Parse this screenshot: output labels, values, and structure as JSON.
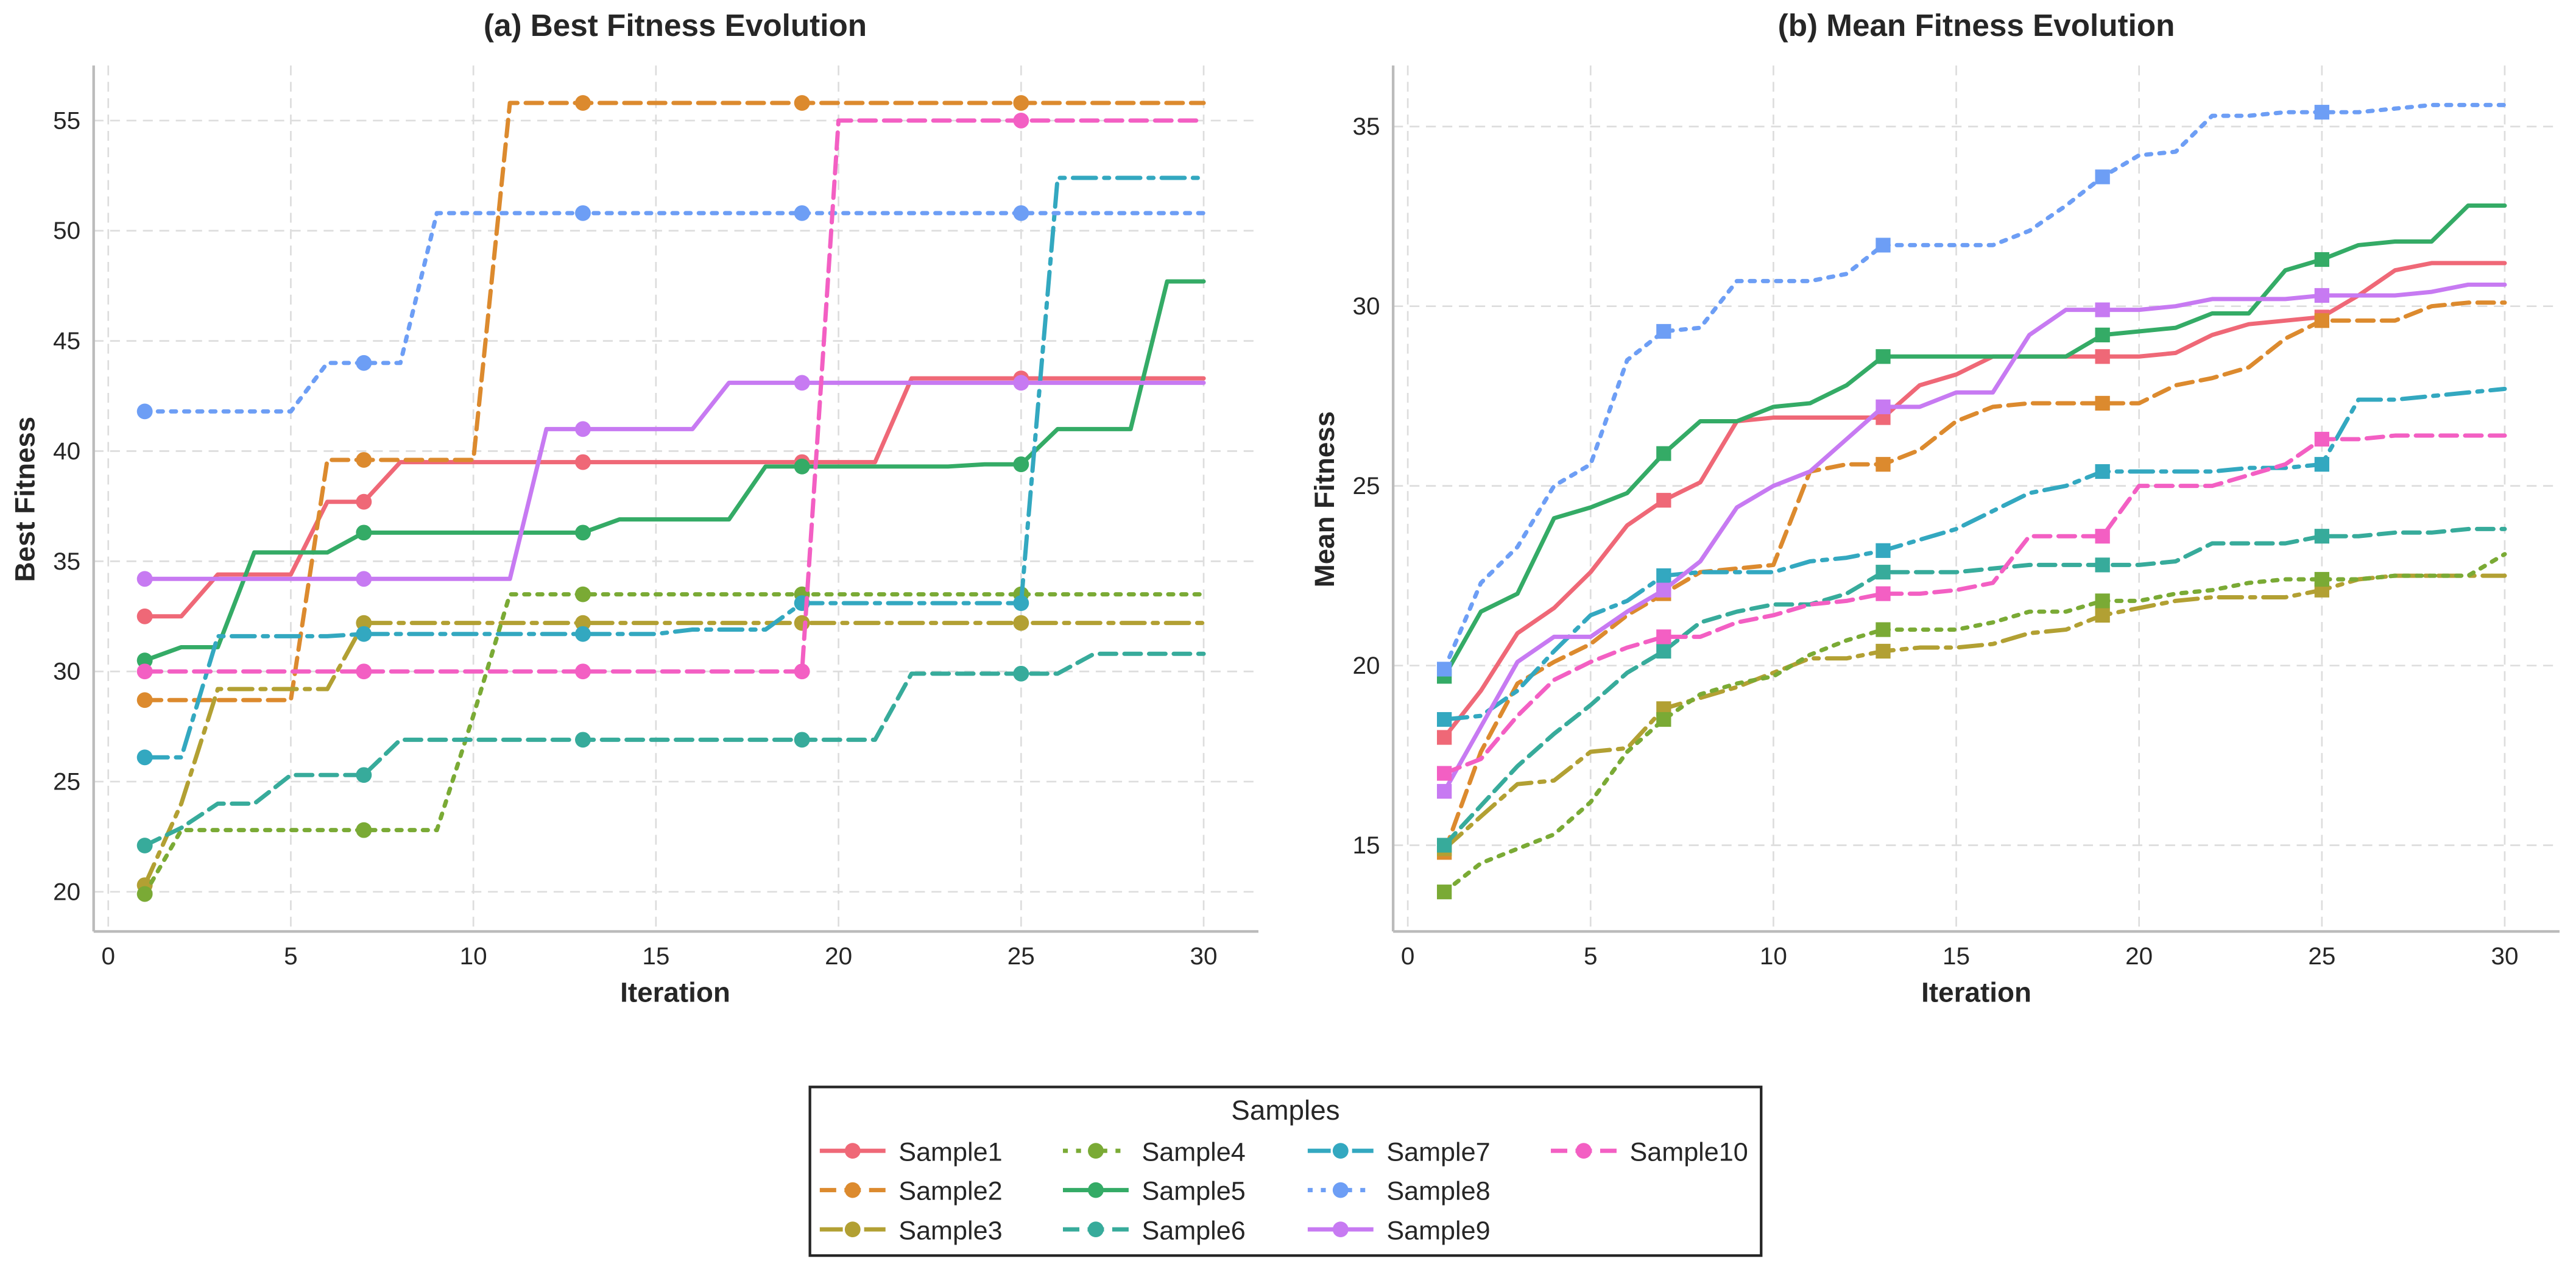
{
  "chart_data": [
    {
      "type": "line",
      "title": "(a) Best Fitness Evolution",
      "xlabel": "Iteration",
      "ylabel": "Best Fitness",
      "xlim": [
        -0.4,
        31.5
      ],
      "ylim": [
        18.2,
        57.5
      ],
      "xticks": [
        0,
        5,
        10,
        15,
        20,
        25,
        30
      ],
      "yticks": [
        20,
        25,
        30,
        35,
        40,
        45,
        50,
        55
      ],
      "grid": true,
      "marker": "circle",
      "marker_every": [
        1,
        7,
        13,
        19,
        25
      ],
      "x": [
        1,
        2,
        3,
        4,
        5,
        6,
        7,
        8,
        9,
        10,
        11,
        12,
        13,
        14,
        15,
        16,
        17,
        18,
        19,
        20,
        21,
        22,
        23,
        24,
        25,
        26,
        27,
        28,
        29,
        30
      ],
      "series": [
        {
          "name": "Sample1",
          "values": [
            32.5,
            32.5,
            34.4,
            34.4,
            34.4,
            37.7,
            37.7,
            39.5,
            39.5,
            39.5,
            39.5,
            39.5,
            39.5,
            39.5,
            39.5,
            39.5,
            39.5,
            39.5,
            39.5,
            39.5,
            39.5,
            43.3,
            43.3,
            43.3,
            43.3,
            43.3,
            43.3,
            43.3,
            43.3,
            43.3
          ]
        },
        {
          "name": "Sample2",
          "values": [
            28.7,
            28.7,
            28.7,
            28.7,
            28.7,
            39.6,
            39.6,
            39.6,
            39.6,
            39.6,
            55.8,
            55.8,
            55.8,
            55.8,
            55.8,
            55.8,
            55.8,
            55.8,
            55.8,
            55.8,
            55.8,
            55.8,
            55.8,
            55.8,
            55.8,
            55.8,
            55.8,
            55.8,
            55.8,
            55.8
          ]
        },
        {
          "name": "Sample3",
          "values": [
            20.3,
            24.0,
            29.2,
            29.2,
            29.2,
            29.2,
            32.2,
            32.2,
            32.2,
            32.2,
            32.2,
            32.2,
            32.2,
            32.2,
            32.2,
            32.2,
            32.2,
            32.2,
            32.2,
            32.2,
            32.2,
            32.2,
            32.2,
            32.2,
            32.2,
            32.2,
            32.2,
            32.2,
            32.2,
            32.2
          ]
        },
        {
          "name": "Sample4",
          "values": [
            19.9,
            22.8,
            22.8,
            22.8,
            22.8,
            22.8,
            22.8,
            22.8,
            22.8,
            28.0,
            33.5,
            33.5,
            33.5,
            33.5,
            33.5,
            33.5,
            33.5,
            33.5,
            33.5,
            33.5,
            33.5,
            33.5,
            33.5,
            33.5,
            33.5,
            33.5,
            33.5,
            33.5,
            33.5,
            33.5
          ]
        },
        {
          "name": "Sample5",
          "values": [
            30.5,
            31.1,
            31.1,
            35.4,
            35.4,
            35.4,
            36.3,
            36.3,
            36.3,
            36.3,
            36.3,
            36.3,
            36.3,
            36.9,
            36.9,
            36.9,
            36.9,
            39.3,
            39.3,
            39.3,
            39.3,
            39.3,
            39.3,
            39.4,
            39.4,
            41.0,
            41.0,
            41.0,
            47.7,
            47.7
          ]
        },
        {
          "name": "Sample6",
          "values": [
            22.1,
            22.9,
            24.0,
            24.0,
            25.3,
            25.3,
            25.3,
            26.9,
            26.9,
            26.9,
            26.9,
            26.9,
            26.9,
            26.9,
            26.9,
            26.9,
            26.9,
            26.9,
            26.9,
            26.9,
            26.9,
            29.9,
            29.9,
            29.9,
            29.9,
            29.9,
            30.8,
            30.8,
            30.8,
            30.8
          ]
        },
        {
          "name": "Sample7",
          "values": [
            26.1,
            26.1,
            31.6,
            31.6,
            31.6,
            31.6,
            31.7,
            31.7,
            31.7,
            31.7,
            31.7,
            31.7,
            31.7,
            31.7,
            31.7,
            31.9,
            31.9,
            31.9,
            33.1,
            33.1,
            33.1,
            33.1,
            33.1,
            33.1,
            33.1,
            52.4,
            52.4,
            52.4,
            52.4,
            52.4
          ]
        },
        {
          "name": "Sample8",
          "values": [
            41.8,
            41.8,
            41.8,
            41.8,
            41.8,
            44.0,
            44.0,
            44.0,
            50.8,
            50.8,
            50.8,
            50.8,
            50.8,
            50.8,
            50.8,
            50.8,
            50.8,
            50.8,
            50.8,
            50.8,
            50.8,
            50.8,
            50.8,
            50.8,
            50.8,
            50.8,
            50.8,
            50.8,
            50.8,
            50.8
          ]
        },
        {
          "name": "Sample9",
          "values": [
            34.2,
            34.2,
            34.2,
            34.2,
            34.2,
            34.2,
            34.2,
            34.2,
            34.2,
            34.2,
            34.2,
            41.0,
            41.0,
            41.0,
            41.0,
            41.0,
            43.1,
            43.1,
            43.1,
            43.1,
            43.1,
            43.1,
            43.1,
            43.1,
            43.1,
            43.1,
            43.1,
            43.1,
            43.1,
            43.1
          ]
        },
        {
          "name": "Sample10",
          "values": [
            30.0,
            30.0,
            30.0,
            30.0,
            30.0,
            30.0,
            30.0,
            30.0,
            30.0,
            30.0,
            30.0,
            30.0,
            30.0,
            30.0,
            30.0,
            30.0,
            30.0,
            30.0,
            30.0,
            55.0,
            55.0,
            55.0,
            55.0,
            55.0,
            55.0,
            55.0,
            55.0,
            55.0,
            55.0,
            55.0
          ]
        }
      ]
    },
    {
      "type": "line",
      "title": "(b) Mean Fitness Evolution",
      "xlabel": "Iteration",
      "ylabel": "Mean Fitness",
      "xlim": [
        -0.4,
        31.5
      ],
      "ylim": [
        12.6,
        36.7
      ],
      "xticks": [
        0,
        5,
        10,
        15,
        20,
        25,
        30
      ],
      "yticks": [
        15,
        20,
        25,
        30,
        35
      ],
      "grid": true,
      "marker": "square",
      "marker_every": [
        1,
        7,
        13,
        19,
        25
      ],
      "x": [
        1,
        2,
        3,
        4,
        5,
        6,
        7,
        8,
        9,
        10,
        11,
        12,
        13,
        14,
        15,
        16,
        17,
        18,
        19,
        20,
        21,
        22,
        23,
        24,
        25,
        26,
        27,
        28,
        29,
        30
      ],
      "series": [
        {
          "name": "Sample1",
          "values": [
            18.0,
            19.3,
            20.9,
            21.6,
            22.6,
            23.9,
            24.6,
            25.1,
            26.8,
            26.9,
            26.9,
            26.9,
            26.9,
            27.8,
            28.1,
            28.6,
            28.6,
            28.6,
            28.6,
            28.6,
            28.7,
            29.2,
            29.5,
            29.6,
            29.7,
            30.3,
            31.0,
            31.2,
            31.2,
            31.2
          ]
        },
        {
          "name": "Sample2",
          "values": [
            14.8,
            17.6,
            19.5,
            20.1,
            20.6,
            21.4,
            22.0,
            22.6,
            22.7,
            22.8,
            25.4,
            25.6,
            25.6,
            26.0,
            26.8,
            27.2,
            27.3,
            27.3,
            27.3,
            27.3,
            27.8,
            28.0,
            28.3,
            29.1,
            29.6,
            29.6,
            29.6,
            30.0,
            30.1,
            30.1
          ]
        },
        {
          "name": "Sample3",
          "values": [
            14.9,
            15.8,
            16.7,
            16.8,
            17.6,
            17.7,
            18.8,
            19.1,
            19.4,
            19.8,
            20.2,
            20.2,
            20.4,
            20.5,
            20.5,
            20.6,
            20.9,
            21.0,
            21.4,
            21.6,
            21.8,
            21.9,
            21.9,
            21.9,
            22.1,
            22.4,
            22.5,
            22.5,
            22.5,
            22.5
          ]
        },
        {
          "name": "Sample4",
          "values": [
            13.7,
            14.5,
            14.9,
            15.3,
            16.2,
            17.6,
            18.5,
            19.2,
            19.5,
            19.7,
            20.3,
            20.7,
            21.0,
            21.0,
            21.0,
            21.2,
            21.5,
            21.5,
            21.8,
            21.8,
            22.0,
            22.1,
            22.3,
            22.4,
            22.4,
            22.4,
            22.5,
            22.5,
            22.5,
            23.1
          ]
        },
        {
          "name": "Sample5",
          "values": [
            19.7,
            21.5,
            22.0,
            24.1,
            24.4,
            24.8,
            25.9,
            26.8,
            26.8,
            27.2,
            27.3,
            27.8,
            28.6,
            28.6,
            28.6,
            28.6,
            28.6,
            28.6,
            29.2,
            29.3,
            29.4,
            29.8,
            29.8,
            31.0,
            31.3,
            31.7,
            31.8,
            31.8,
            32.8,
            32.8
          ]
        },
        {
          "name": "Sample6",
          "values": [
            15.0,
            16.1,
            17.2,
            18.1,
            18.9,
            19.8,
            20.4,
            21.2,
            21.5,
            21.7,
            21.7,
            22.0,
            22.6,
            22.6,
            22.6,
            22.7,
            22.8,
            22.8,
            22.8,
            22.8,
            22.9,
            23.4,
            23.4,
            23.4,
            23.6,
            23.6,
            23.7,
            23.7,
            23.8,
            23.8
          ]
        },
        {
          "name": "Sample7",
          "values": [
            18.5,
            18.6,
            19.3,
            20.4,
            21.4,
            21.8,
            22.5,
            22.6,
            22.6,
            22.6,
            22.9,
            23.0,
            23.2,
            23.5,
            23.8,
            24.3,
            24.8,
            25.0,
            25.4,
            25.4,
            25.4,
            25.4,
            25.5,
            25.5,
            25.6,
            27.4,
            27.4,
            27.5,
            27.6,
            27.7
          ]
        },
        {
          "name": "Sample8",
          "values": [
            19.9,
            22.3,
            23.3,
            25.0,
            25.6,
            28.5,
            29.3,
            29.4,
            30.7,
            30.7,
            30.7,
            30.9,
            31.7,
            31.7,
            31.7,
            31.7,
            32.1,
            32.8,
            33.6,
            34.2,
            34.3,
            35.3,
            35.3,
            35.4,
            35.4,
            35.4,
            35.5,
            35.6,
            35.6,
            35.6
          ]
        },
        {
          "name": "Sample9",
          "values": [
            16.5,
            18.3,
            20.1,
            20.8,
            20.8,
            21.5,
            22.1,
            22.9,
            24.4,
            25.0,
            25.4,
            26.3,
            27.2,
            27.2,
            27.6,
            27.6,
            29.2,
            29.9,
            29.9,
            29.9,
            30.0,
            30.2,
            30.2,
            30.2,
            30.3,
            30.3,
            30.3,
            30.4,
            30.6,
            30.6
          ]
        },
        {
          "name": "Sample10",
          "values": [
            17.0,
            17.4,
            18.6,
            19.6,
            20.1,
            20.5,
            20.8,
            20.8,
            21.2,
            21.4,
            21.7,
            21.8,
            22.0,
            22.0,
            22.1,
            22.3,
            23.6,
            23.6,
            23.6,
            25.0,
            25.0,
            25.0,
            25.3,
            25.6,
            26.3,
            26.3,
            26.4,
            26.4,
            26.4,
            26.4
          ]
        }
      ]
    }
  ],
  "legend": {
    "title": "Samples",
    "placement": "bottom-center",
    "entries": [
      "Sample1",
      "Sample2",
      "Sample3",
      "Sample4",
      "Sample5",
      "Sample6",
      "Sample7",
      "Sample8",
      "Sample9",
      "Sample10"
    ]
  },
  "style": {
    "colors": [
      "#ef6877",
      "#dc8a2e",
      "#b2a033",
      "#7aaa35",
      "#34ab66",
      "#37ab9b",
      "#33a8c0",
      "#6d9ef5",
      "#c77af2",
      "#f35fc3"
    ],
    "dashes": [
      "",
      "10,5",
      "14,5,3,5",
      "3,5",
      "",
      "10,5",
      "14,5,3,5",
      "3,5",
      "",
      "10,5"
    ],
    "grid_color": "#dddddd",
    "axis_color": "#bbbbbb",
    "text_color": "#262626"
  }
}
